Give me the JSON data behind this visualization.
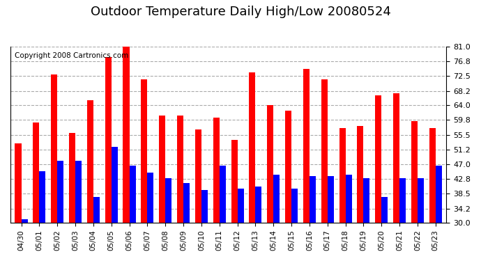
{
  "title": "Outdoor Temperature Daily High/Low 20080524",
  "copyright": "Copyright 2008 Cartronics.com",
  "dates": [
    "04/30",
    "05/01",
    "05/02",
    "05/03",
    "05/04",
    "05/05",
    "05/06",
    "05/07",
    "05/08",
    "05/09",
    "05/10",
    "05/11",
    "05/12",
    "05/13",
    "05/14",
    "05/15",
    "05/16",
    "05/17",
    "05/18",
    "05/19",
    "05/20",
    "05/21",
    "05/22",
    "05/23"
  ],
  "highs": [
    53.0,
    59.0,
    73.0,
    56.0,
    65.5,
    78.0,
    81.0,
    71.5,
    61.0,
    61.0,
    57.0,
    60.5,
    54.0,
    73.5,
    64.0,
    62.5,
    74.5,
    71.5,
    57.5,
    58.0,
    67.0,
    67.5,
    59.5,
    57.5
  ],
  "lows": [
    31.0,
    45.0,
    48.0,
    48.0,
    37.5,
    52.0,
    46.5,
    44.5,
    43.0,
    41.5,
    39.5,
    46.5,
    40.0,
    40.5,
    44.0,
    40.0,
    43.5,
    43.5,
    44.0,
    43.0,
    37.5,
    43.0,
    43.0,
    46.5
  ],
  "high_color": "#ff0000",
  "low_color": "#0000ff",
  "bg_color": "#ffffff",
  "plot_bg_color": "#ffffff",
  "grid_color": "#aaaaaa",
  "ylim": [
    30.0,
    81.0
  ],
  "yticks": [
    30.0,
    34.2,
    38.5,
    42.8,
    47.0,
    51.2,
    55.5,
    59.8,
    64.0,
    68.2,
    72.5,
    76.8,
    81.0
  ],
  "bar_width": 0.35,
  "title_fontsize": 13,
  "copyright_fontsize": 7.5
}
